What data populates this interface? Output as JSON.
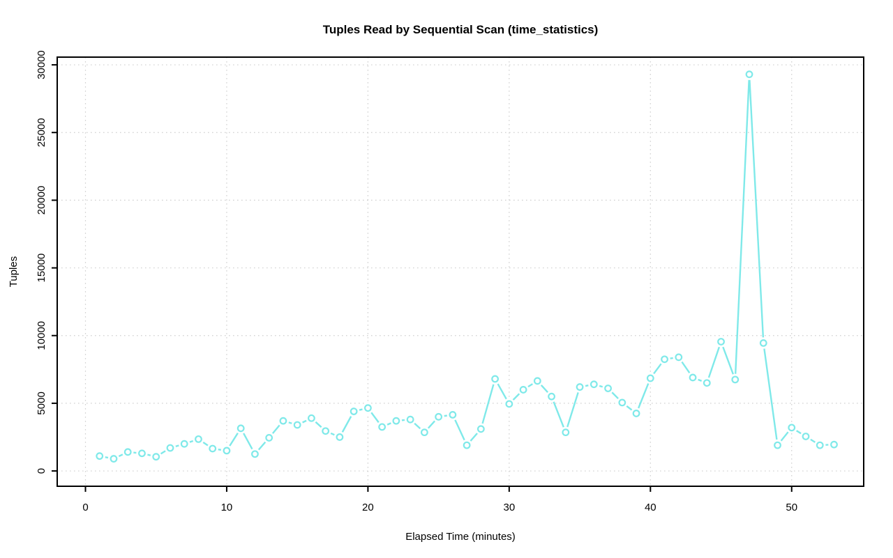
{
  "chart_data": {
    "type": "line",
    "title": "Tuples Read by Sequential Scan (time_statistics)",
    "xlabel": "Elapsed Time (minutes)",
    "ylabel": "Tuples",
    "x_ticks": [
      0,
      10,
      20,
      30,
      40,
      50
    ],
    "y_ticks": [
      0,
      5000,
      10000,
      15000,
      20000,
      25000,
      30000
    ],
    "xlim": [
      -2,
      55.1
    ],
    "ylim": [
      -1130,
      30570
    ],
    "grid": "dotted",
    "legend": "none",
    "marker": "open-circle",
    "line_style": "solid-with-marker-gaps",
    "colors": {
      "series": "#7FE9E9",
      "grid": "#CFCFCF",
      "axis": "#000000",
      "background": "#FFFFFF"
    },
    "series": [
      {
        "name": "tuples-read-by-seq-scan",
        "x": [
          1,
          2,
          3,
          4,
          5,
          6,
          7,
          8,
          9,
          10,
          11,
          12,
          13,
          14,
          15,
          16,
          17,
          18,
          19,
          20,
          21,
          22,
          23,
          24,
          25,
          26,
          27,
          28,
          29,
          30,
          31,
          32,
          33,
          34,
          35,
          36,
          37,
          38,
          39,
          40,
          41,
          42,
          43,
          44,
          45,
          46,
          47,
          48,
          49,
          50,
          51,
          52,
          53
        ],
        "values": [
          1100,
          900,
          1400,
          1300,
          1050,
          1700,
          2000,
          2350,
          1650,
          1500,
          3150,
          1250,
          2450,
          3700,
          3400,
          3900,
          2950,
          2500,
          4400,
          4650,
          3250,
          3700,
          3800,
          2850,
          4000,
          4150,
          1900,
          3100,
          6800,
          4950,
          6000,
          6650,
          5500,
          2850,
          6200,
          6400,
          6100,
          5050,
          4250,
          6850,
          8250,
          8400,
          6900,
          6500,
          9550,
          6750,
          29300,
          9450,
          1900,
          3200,
          2550,
          1900,
          1950
        ]
      }
    ]
  }
}
